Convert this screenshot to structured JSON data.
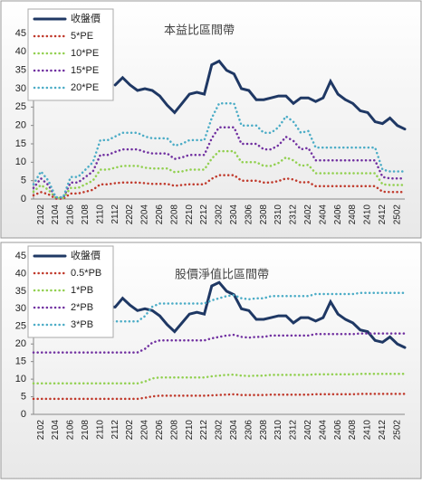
{
  "chart_data": [
    {
      "type": "line",
      "title": "本益比區間帶",
      "categories": [
        null,
        "2102",
        null,
        "2104",
        null,
        "2106",
        null,
        "2108",
        null,
        "2110",
        null,
        "2112",
        null,
        "2202",
        null,
        "2204",
        null,
        "2206",
        null,
        "2208",
        null,
        "2210",
        null,
        "2212",
        null,
        "2302",
        null,
        "2304",
        null,
        "2306",
        null,
        "2308",
        null,
        "2310",
        null,
        "2312",
        null,
        "2402",
        null,
        "2404",
        null,
        "2406",
        null,
        "2408",
        null,
        "2410",
        null,
        "2412",
        null,
        "2502",
        null
      ],
      "ylim": [
        0,
        45
      ],
      "yticks": [
        0,
        5,
        10,
        15,
        20,
        25,
        30,
        35,
        40,
        45
      ],
      "series": [
        {
          "name": "收盤價",
          "color": "#1f3864",
          "values": [
            null,
            null,
            null,
            null,
            null,
            null,
            null,
            null,
            null,
            null,
            null,
            31,
            33,
            31,
            29.5,
            30,
            29.5,
            28,
            25.5,
            23.5,
            26,
            28.5,
            29,
            28.5,
            36.5,
            37.5,
            35,
            34,
            30,
            29.5,
            27,
            27,
            27.5,
            28,
            28,
            26,
            27.5,
            27.5,
            26.5,
            27.5,
            32,
            28.5,
            27,
            26,
            24,
            23.5,
            21,
            20.5,
            22,
            20,
            19
          ]
        },
        {
          "name": "5*PE",
          "color": "#c0392b",
          "values": [
            1,
            1.9,
            1.3,
            0.1,
            0.1,
            1.5,
            1.5,
            2,
            2.5,
            4,
            4,
            4.3,
            4.5,
            4.5,
            4.5,
            4.3,
            4.1,
            4.1,
            4.1,
            3.6,
            3.8,
            4,
            4,
            4,
            5.5,
            6.5,
            6.5,
            6.5,
            5,
            5,
            5,
            4.5,
            4.5,
            4.9,
            5.6,
            5.3,
            4.5,
            4.6,
            3.5,
            3.5,
            3.5,
            3.5,
            3.5,
            3.5,
            3.5,
            3.5,
            3.5,
            2,
            1.9,
            1.9,
            1.9
          ]
        },
        {
          "name": "10*PE",
          "color": "#92d050",
          "values": [
            2,
            3.8,
            2.5,
            0.3,
            0.3,
            3,
            3,
            4,
            5,
            8,
            8,
            8.5,
            9,
            9,
            9,
            8.5,
            8.3,
            8.3,
            8.3,
            7.3,
            7.5,
            8,
            8,
            8,
            11,
            13,
            13,
            13,
            10,
            10,
            10,
            9,
            9,
            9.8,
            11.3,
            10.5,
            9,
            9.3,
            7,
            7,
            7,
            7,
            7,
            7,
            7,
            7,
            7,
            4,
            3.8,
            3.8,
            3.8
          ]
        },
        {
          "name": "15*PE",
          "color": "#7030a0",
          "values": [
            3,
            5.6,
            3.8,
            0.4,
            0.4,
            4.5,
            4.5,
            6,
            7.5,
            12,
            12,
            12.8,
            13.5,
            13.5,
            13.5,
            12.8,
            12.4,
            12.4,
            12.4,
            10.9,
            11.3,
            12,
            12,
            12,
            16.5,
            19.5,
            19.5,
            19.5,
            15,
            15,
            15,
            13.5,
            13.5,
            14.6,
            16.9,
            15.8,
            13.5,
            13.9,
            10.5,
            10.5,
            10.5,
            10.5,
            10.5,
            10.5,
            10.5,
            10.5,
            10.5,
            6,
            5.6,
            5.6,
            5.6
          ]
        },
        {
          "name": "20*PE",
          "color": "#4bacc6",
          "values": [
            4,
            7.5,
            5,
            0.5,
            0.5,
            6,
            6,
            8,
            10,
            16,
            16,
            17,
            18,
            18,
            18,
            17,
            16.5,
            16.5,
            16.5,
            14.5,
            15,
            16,
            16,
            16,
            22,
            26,
            26,
            26,
            20,
            20,
            20,
            18,
            18,
            19.5,
            22.5,
            21,
            18,
            18.5,
            14,
            14,
            14,
            14,
            14,
            14,
            14,
            14,
            14,
            8,
            7.5,
            7.5,
            7.5
          ]
        }
      ]
    },
    {
      "type": "line",
      "title": "股價淨值比區間帶",
      "categories": [
        null,
        "2102",
        null,
        "2104",
        null,
        "2106",
        null,
        "2108",
        null,
        "2110",
        null,
        "2112",
        null,
        "2202",
        null,
        "2204",
        null,
        "2206",
        null,
        "2208",
        null,
        "2210",
        null,
        "2212",
        null,
        "2302",
        null,
        "2304",
        null,
        "2306",
        null,
        "2308",
        null,
        "2310",
        null,
        "2312",
        null,
        "2402",
        null,
        "2404",
        null,
        "2406",
        null,
        "2408",
        null,
        "2410",
        null,
        "2412",
        null,
        "2502",
        null
      ],
      "ylim": [
        0,
        45
      ],
      "yticks": [
        0,
        5,
        10,
        15,
        20,
        25,
        30,
        35,
        40,
        45
      ],
      "series": [
        {
          "name": "收盤價",
          "color": "#1f3864",
          "values": [
            27,
            28,
            29,
            29.5,
            30,
            30.5,
            31,
            31,
            30.5,
            31,
            30.5,
            30.5,
            33,
            31,
            29.5,
            30,
            29.5,
            28,
            25.5,
            23.5,
            26,
            28.5,
            29,
            28.5,
            36.5,
            37.5,
            35,
            34,
            30,
            29.5,
            27,
            27,
            27.5,
            28,
            28,
            26,
            27.5,
            27.5,
            26.5,
            27.5,
            32,
            28.5,
            27,
            26,
            24,
            23.5,
            21,
            20.5,
            22,
            20,
            19
          ]
        },
        {
          "name": "0.5*PB",
          "color": "#c0392b",
          "values": [
            4.4,
            4.4,
            4.4,
            4.4,
            4.4,
            4.4,
            4.4,
            4.4,
            4.4,
            4.4,
            4.4,
            4.4,
            4.4,
            4.4,
            4.4,
            4.7,
            5.1,
            5.3,
            5.3,
            5.3,
            5.3,
            5.3,
            5.3,
            5.3,
            5.4,
            5.5,
            5.6,
            5.7,
            5.5,
            5.5,
            5.5,
            5.5,
            5.6,
            5.6,
            5.6,
            5.6,
            5.6,
            5.6,
            5.7,
            5.7,
            5.7,
            5.7,
            5.7,
            5.7,
            5.8,
            5.8,
            5.8,
            5.8,
            5.8,
            5.8,
            5.8
          ]
        },
        {
          "name": "1*PB",
          "color": "#92d050",
          "values": [
            8.8,
            8.8,
            8.8,
            8.8,
            8.8,
            8.8,
            8.8,
            8.8,
            8.8,
            8.8,
            8.8,
            8.8,
            8.8,
            8.8,
            8.8,
            9.3,
            10.2,
            10.5,
            10.5,
            10.5,
            10.5,
            10.5,
            10.5,
            10.5,
            10.8,
            11,
            11.2,
            11.3,
            11,
            10.9,
            11,
            11,
            11.2,
            11.2,
            11.2,
            11.2,
            11.2,
            11.2,
            11.4,
            11.4,
            11.4,
            11.4,
            11.4,
            11.4,
            11.5,
            11.5,
            11.5,
            11.5,
            11.5,
            11.5,
            11.5
          ]
        },
        {
          "name": "2*PB",
          "color": "#7030a0",
          "values": [
            17.6,
            17.6,
            17.6,
            17.6,
            17.6,
            17.6,
            17.6,
            17.6,
            17.6,
            17.6,
            17.6,
            17.6,
            17.6,
            17.6,
            17.6,
            18.6,
            20.4,
            21,
            21,
            21,
            21,
            21,
            21,
            21,
            21.6,
            22,
            22.4,
            22.6,
            22,
            21.8,
            22,
            22,
            22.4,
            22.4,
            22.4,
            22.4,
            22.4,
            22.4,
            22.8,
            22.8,
            22.8,
            22.8,
            22.8,
            22.8,
            23,
            23,
            23,
            23,
            23,
            23,
            23
          ]
        },
        {
          "name": "3*PB",
          "color": "#4bacc6",
          "values": [
            26.4,
            26.4,
            26.4,
            26.4,
            26.4,
            26.4,
            26.4,
            26.4,
            26.4,
            26.4,
            26.4,
            26.4,
            26.4,
            26.4,
            26.4,
            27.9,
            30.6,
            31.5,
            31.5,
            31.5,
            31.5,
            31.5,
            31.5,
            31.5,
            32.4,
            33,
            33.6,
            33.9,
            33,
            32.7,
            33,
            33,
            33.6,
            33.6,
            33.6,
            33.6,
            33.6,
            33.6,
            34.2,
            34.2,
            34.2,
            34.2,
            34.2,
            34.2,
            34.5,
            34.5,
            34.5,
            34.5,
            34.5,
            34.5,
            34.5
          ]
        }
      ]
    }
  ]
}
